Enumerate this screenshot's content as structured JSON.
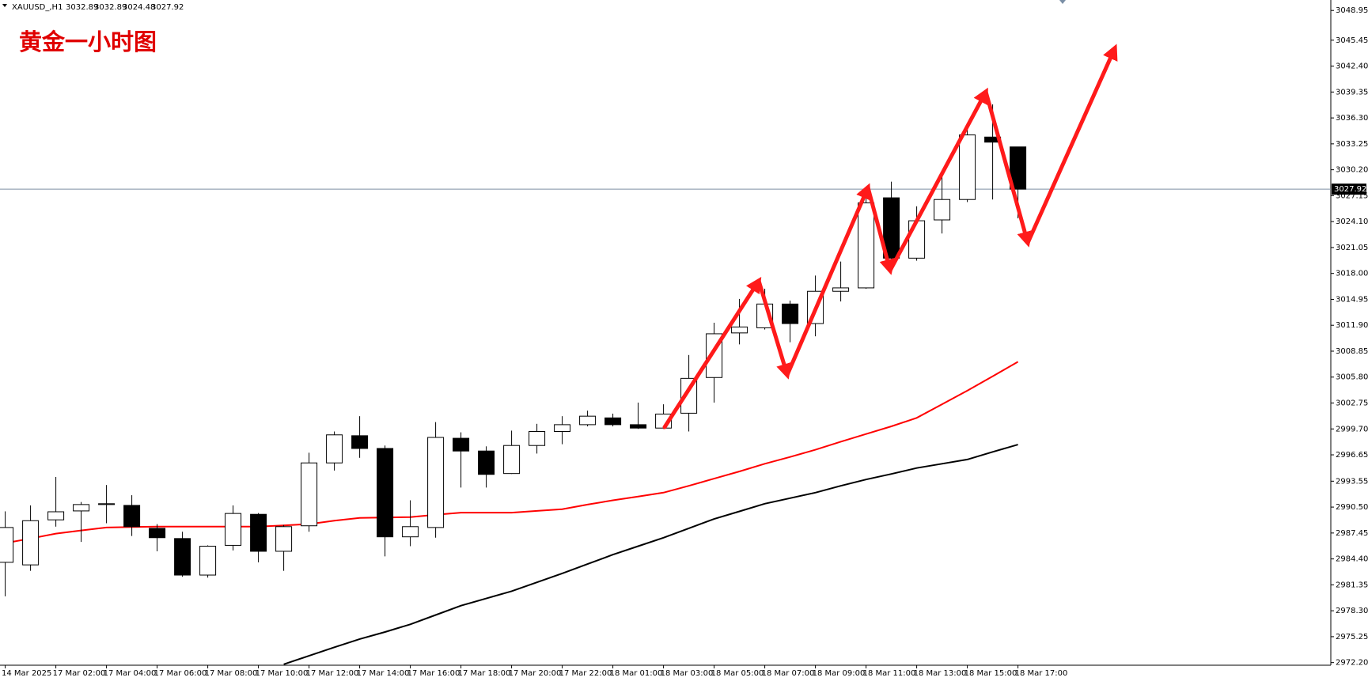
{
  "chart_data": {
    "type": "candlestick",
    "title": "黄金一小时图",
    "symbol": "XAUUSD_,H1",
    "categories": [
      "14 Mar 2025",
      null,
      "17 Mar 02:00",
      null,
      "17 Mar 04:00",
      null,
      "17 Mar 06:00",
      null,
      "17 Mar 08:00",
      null,
      "17 Mar 10:00",
      null,
      "17 Mar 12:00",
      null,
      "17 Mar 14:00",
      null,
      "17 Mar 16:00",
      null,
      "17 Mar 18:00",
      null,
      "17 Mar 20:00",
      null,
      "17 Mar 22:00",
      null,
      "18 Mar 01:00",
      null,
      "18 Mar 03:00",
      null,
      "18 Mar 05:00",
      null,
      "18 Mar 07:00",
      null,
      "18 Mar 09:00",
      null,
      "18 Mar 11:00",
      null,
      "18 Mar 13:00",
      null,
      "18 Mar 15:00",
      null,
      "18 Mar 17:00"
    ],
    "open": [
      2984.0,
      2983.7,
      2989.0,
      2990.05,
      2990.8,
      2990.7,
      2988.0,
      2986.8,
      2982.5,
      2986.0,
      2989.65,
      2985.3,
      2988.3,
      2995.7,
      2998.9,
      2997.4,
      2987.0,
      2988.1,
      2998.6,
      2997.1,
      2994.45,
      2997.75,
      2999.4,
      3000.2,
      3001.0,
      3000.2,
      2999.8,
      3001.55,
      3005.75,
      3011.0,
      3011.6,
      3014.4,
      3012.1,
      3015.9,
      3016.3,
      3026.9,
      3019.8,
      3024.3,
      3026.7,
      3034.05,
      3032.89
    ],
    "high": [
      2990.0,
      2990.7,
      2994.05,
      2991.1,
      2993.1,
      2991.9,
      2988.5,
      2987.6,
      2986.0,
      2990.7,
      2989.8,
      2988.4,
      2996.9,
      2999.4,
      3001.2,
      2997.75,
      2991.3,
      3000.5,
      2999.3,
      2997.65,
      2999.5,
      3000.3,
      3001.2,
      3001.85,
      3001.5,
      3002.8,
      3002.6,
      3008.4,
      3012.2,
      3015.0,
      3016.2,
      3014.8,
      3017.75,
      3019.4,
      3026.9,
      3028.8,
      3025.9,
      3029.45,
      3035.7,
      3037.9,
      3032.89
    ],
    "low": [
      2980.0,
      2983.0,
      2988.2,
      2986.4,
      2988.6,
      2987.1,
      2985.3,
      2982.3,
      2982.2,
      2985.4,
      2984.0,
      2983.0,
      2987.6,
      2994.8,
      2996.3,
      2984.7,
      2985.9,
      2986.9,
      2992.8,
      2992.8,
      2994.4,
      2996.8,
      2997.9,
      3000.0,
      3000.0,
      2999.7,
      2999.7,
      2999.4,
      3002.8,
      3009.65,
      3011.4,
      3009.9,
      3010.6,
      3014.7,
      3016.2,
      3018.1,
      3019.5,
      3022.7,
      3026.4,
      3026.7,
      3024.48
    ],
    "close": [
      2988.1,
      2988.9,
      2989.95,
      2990.8,
      2990.9,
      2988.2,
      2986.9,
      2982.5,
      2985.9,
      2989.75,
      2985.3,
      2988.2,
      2995.7,
      2999.0,
      2997.4,
      2987.0,
      2988.2,
      2998.7,
      2997.1,
      2994.35,
      2997.75,
      2999.4,
      3000.2,
      3001.2,
      3000.2,
      2999.8,
      3001.45,
      3005.65,
      3010.9,
      3011.7,
      3014.4,
      3012.1,
      3015.9,
      3016.3,
      3026.3,
      3019.8,
      3024.2,
      3026.7,
      3034.3,
      3033.45,
      3027.92
    ],
    "up_color": "#ffffff",
    "down_color": "#000000",
    "series": [
      {
        "color": "#ff0000",
        "values": [
          2986.26,
          2986.8,
          2987.38,
          2987.75,
          2988.1,
          2988.15,
          2988.2,
          2988.2,
          2988.2,
          2988.2,
          2988.2,
          2988.35,
          2988.5,
          2988.9,
          2989.23,
          2989.28,
          2989.33,
          2989.6,
          2989.85,
          2989.85,
          2989.85,
          2990.05,
          2990.26,
          2990.8,
          2991.3,
          2991.75,
          2992.2,
          2993.0,
          2993.85,
          2994.7,
          2995.6,
          2996.4,
          2997.25,
          2998.2,
          2999.1,
          3000.0,
          3001.0,
          3002.6,
          3004.2,
          3005.9,
          3007.6
        ]
      },
      {
        "color": "#000000",
        "values": [
          null,
          null,
          null,
          null,
          null,
          null,
          null,
          null,
          null,
          null,
          null,
          2972.0,
          2973.0,
          2974.0,
          2974.97,
          2975.8,
          2976.7,
          2977.8,
          2978.9,
          2979.75,
          2980.6,
          2981.65,
          2982.7,
          2983.8,
          2984.9,
          2985.9,
          2986.9,
          2988.0,
          2989.1,
          2990.0,
          2990.9,
          2991.55,
          2992.2,
          2993.0,
          2993.75,
          2994.4,
          2995.1,
          2995.6,
          2996.1,
          2997.0,
          2997.85
        ]
      }
    ],
    "ylim": [
      2971.89,
      3050.18
    ],
    "yticks": [
      3048.95,
      3045.45,
      {
        "value": 3042.4,
        "label": "3042.40"
      },
      3039.35,
      {
        "value": 3036.3,
        "label": "3036.30"
      },
      3033.25,
      {
        "value": 3030.2,
        "label": "3030.20"
      },
      3027.15,
      {
        "value": 3024.1,
        "label": "3024.10"
      },
      3021.05,
      {
        "value": 3018.0,
        "label": "3018.00"
      },
      3014.95,
      {
        "value": 3011.9,
        "label": "3011.90"
      },
      3008.85,
      {
        "value": 3005.8,
        "label": "3005.80"
      },
      3002.75,
      {
        "value": 2999.7,
        "label": "2999.70"
      },
      2996.65,
      2993.55,
      {
        "value": 2990.5,
        "label": "2990.50"
      },
      2987.45,
      {
        "value": 2984.4,
        "label": "2984.40"
      },
      2981.35,
      {
        "value": 2978.3,
        "label": "2978.30"
      },
      2975.25,
      {
        "value": 2972.2,
        "label": "2972.20"
      }
    ],
    "grid": false
  }
}
